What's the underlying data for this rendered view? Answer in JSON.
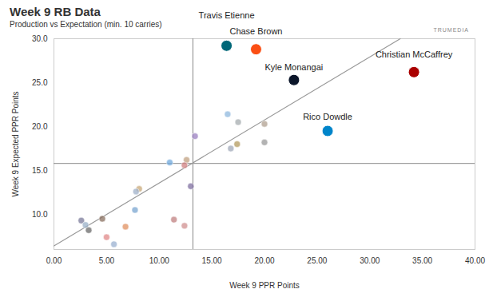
{
  "chart_data": {
    "type": "scatter",
    "title": "Week 9 RB Data",
    "subtitle": "Production vs Expectation (min. 10 carries)",
    "logo_text": "TRUMEDIA",
    "x_label": "Week 9 PPR Points",
    "y_label": "Week 9 Expected PPR Points",
    "x": [
      16.4,
      19.2,
      22.8,
      34.2,
      26.0,
      16.5,
      17.5,
      20.0,
      20.0,
      17.4,
      16.8,
      13.4,
      11.0,
      12.6,
      12.4,
      13.0,
      8.1,
      7.8,
      7.7,
      4.6,
      2.6,
      3.0,
      3.3,
      6.8,
      11.4,
      12.4,
      5.0,
      5.7
    ],
    "y": [
      29.2,
      28.8,
      25.3,
      26.2,
      19.5,
      21.4,
      20.5,
      20.3,
      18.2,
      18.0,
      17.5,
      18.9,
      15.9,
      16.2,
      15.6,
      13.2,
      12.9,
      12.6,
      10.5,
      9.5,
      9.3,
      8.8,
      8.2,
      8.6,
      9.4,
      8.7,
      7.4,
      6.6
    ],
    "names": [
      "Travis Etienne",
      "Chase Brown",
      "Kyle Monangai",
      "Christian McCaffrey",
      "Rico Dowdle",
      null,
      null,
      null,
      null,
      null,
      null,
      null,
      null,
      null,
      null,
      null,
      null,
      null,
      null,
      null,
      null,
      null,
      null,
      null,
      null,
      null,
      null,
      null
    ],
    "colors": [
      "#006778",
      "#fb4f14",
      "#0b162a",
      "#aa0000",
      "#0085ca",
      "#8fb8de",
      "#a5acaf",
      "#b0a090",
      "#9a9a9a",
      "#b3995d",
      "#a0a8b8",
      "#9a7fc0",
      "#6fa8dc",
      "#c0a080",
      "#d08080",
      "#7f6fa0",
      "#c8a878",
      "#9fb0c8",
      "#7aa6d0",
      "#8a7060",
      "#7a7a9a",
      "#9ab0c8",
      "#6a6a6a",
      "#e09060",
      "#c08080",
      "#d09090",
      "#e08888",
      "#9ab0d0"
    ],
    "reference_lines": {
      "x": 13.2,
      "y": 15.8
    },
    "trend_line": {
      "x": [
        0,
        32.9
      ],
      "y": [
        6.4,
        30
      ]
    },
    "xlim": [
      0,
      40
    ],
    "ylim": [
      6,
      30
    ],
    "xticks": [
      {
        "value": 0,
        "label": "0.00"
      },
      {
        "value": 5,
        "label": "5.00"
      },
      {
        "value": 10,
        "label": "10.00"
      },
      {
        "value": 15,
        "label": "15.00"
      },
      {
        "value": 20,
        "label": "20.00"
      },
      {
        "value": 25,
        "label": "25.00"
      },
      {
        "value": 30,
        "label": "30.00"
      },
      {
        "value": 35,
        "label": "35.00"
      },
      {
        "value": 40,
        "label": "40.00"
      }
    ],
    "yticks": [
      {
        "value": 10,
        "label": "10.0"
      },
      {
        "value": 15,
        "label": "15.0"
      },
      {
        "value": 20,
        "label": "20.0"
      },
      {
        "value": 25,
        "label": "25.0"
      },
      {
        "value": 30,
        "label": "30.0"
      }
    ],
    "grid": false
  }
}
